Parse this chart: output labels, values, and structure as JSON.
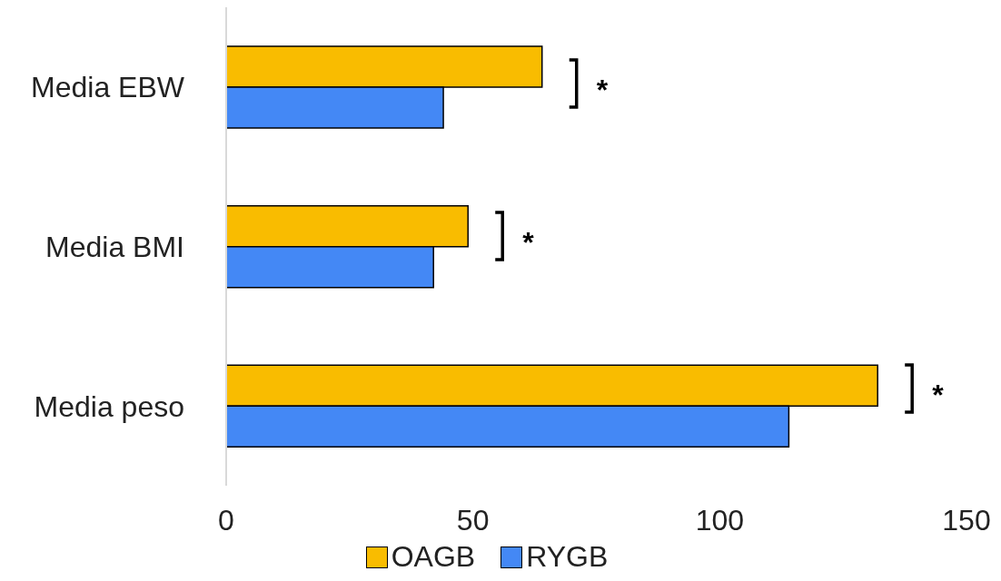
{
  "chart_data": {
    "type": "bar",
    "orientation": "horizontal",
    "categories": [
      "Media EBW",
      "Media BMI",
      "Media peso"
    ],
    "series": [
      {
        "name": "OAGB",
        "color": "#f9bc00",
        "values": [
          64,
          49,
          132
        ]
      },
      {
        "name": "RYGB",
        "color": "#4488f5",
        "values": [
          44,
          42,
          114
        ]
      }
    ],
    "xlim": [
      0,
      150
    ],
    "xticks": [
      0,
      50,
      100,
      150
    ],
    "grid": false,
    "legend": "bottom",
    "annotations": [
      "*",
      "*",
      "*"
    ]
  }
}
